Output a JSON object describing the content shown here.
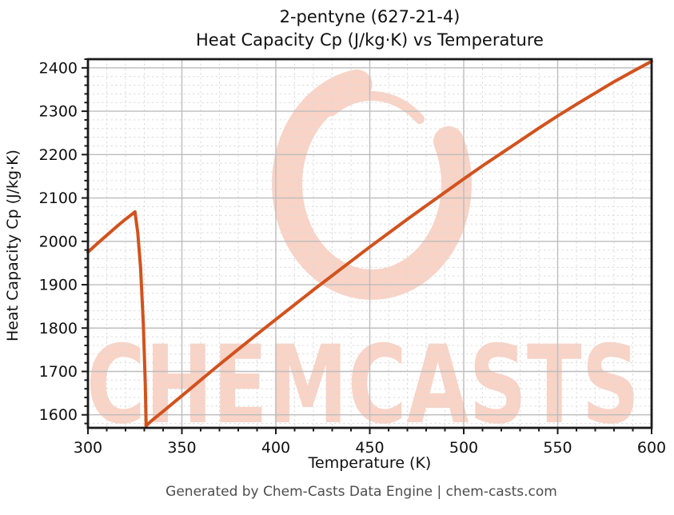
{
  "title": {
    "line1": "2-pentyne (627-21-4)",
    "line2": "Heat Capacity Cp (J/kg·K) vs Temperature"
  },
  "footer": "Generated by Chem-Casts Data Engine | chem-casts.com",
  "watermark": {
    "text": "CHEMCASTS",
    "color": "#f8d3c6"
  },
  "colors": {
    "line": "#d2521e",
    "major_grid": "#bdbdbd",
    "minor_grid": "#dcdcdc",
    "spine": "#1a1a1a",
    "tick_label": "#101010",
    "footer_text": "#4d4d4d"
  },
  "chart_data": {
    "type": "line",
    "title": "2-pentyne (627-21-4) — Heat Capacity Cp (J/kg·K) vs Temperature",
    "xlabel": "Temperature (K)",
    "ylabel": "Heat Capacity Cp (J/kg·K)",
    "xlim": [
      300,
      600
    ],
    "ylim": [
      1570,
      2420
    ],
    "x_ticks": [
      300,
      350,
      400,
      450,
      500,
      550,
      600
    ],
    "y_ticks": [
      1600,
      1700,
      1800,
      1900,
      2000,
      2100,
      2200,
      2300,
      2400
    ],
    "x_minor_step": 10,
    "y_minor_step": 20,
    "grid": {
      "major": true,
      "minor": true
    },
    "legend": "none",
    "series": [
      {
        "name": "Heat Capacity Cp",
        "points": [
          [
            300,
            1975
          ],
          [
            305,
            1995
          ],
          [
            310,
            2014
          ],
          [
            315,
            2033
          ],
          [
            320,
            2051
          ],
          [
            323,
            2061
          ],
          [
            325,
            2068
          ],
          [
            326.5,
            2020
          ],
          [
            328,
            1940
          ],
          [
            329.5,
            1808
          ],
          [
            330.5,
            1672
          ],
          [
            331,
            1575
          ],
          [
            334,
            1587
          ],
          [
            340,
            1608
          ],
          [
            350,
            1644
          ],
          [
            360,
            1680
          ],
          [
            370,
            1716
          ],
          [
            380,
            1751
          ],
          [
            390,
            1786
          ],
          [
            400,
            1820
          ],
          [
            410,
            1854
          ],
          [
            420,
            1888
          ],
          [
            430,
            1921
          ],
          [
            440,
            1954
          ],
          [
            450,
            1987
          ],
          [
            460,
            2019
          ],
          [
            470,
            2051
          ],
          [
            480,
            2082
          ],
          [
            490,
            2113
          ],
          [
            500,
            2144
          ],
          [
            510,
            2174
          ],
          [
            520,
            2203
          ],
          [
            530,
            2232
          ],
          [
            540,
            2261
          ],
          [
            550,
            2289
          ],
          [
            560,
            2316
          ],
          [
            570,
            2342
          ],
          [
            580,
            2368
          ],
          [
            590,
            2392
          ],
          [
            600,
            2415
          ]
        ]
      }
    ]
  }
}
